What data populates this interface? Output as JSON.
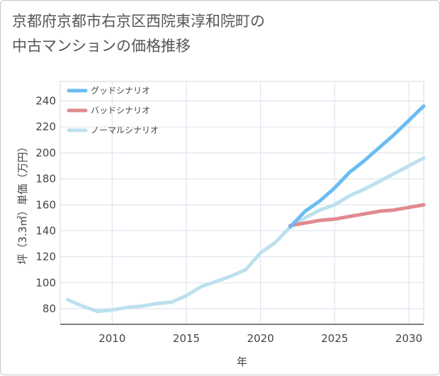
{
  "chart_data": {
    "type": "line",
    "title": "京都府京都市右京区西院東淳和院町の\n中古マンションの価格推移",
    "xlabel": "年",
    "ylabel": "坪（3.3㎡）単価（万円）",
    "xlim": [
      2006.5,
      2031
    ],
    "ylim": [
      68,
      255
    ],
    "x_ticks": [
      2010,
      2015,
      2020,
      2025,
      2030
    ],
    "y_ticks": [
      80,
      100,
      120,
      140,
      160,
      180,
      200,
      220,
      240
    ],
    "grid": true,
    "legend_position": "top-left",
    "series": [
      {
        "name": "グッドシナリオ",
        "color": "#6bbcf2",
        "x": [
          2022,
          2023,
          2024,
          2025,
          2026,
          2027,
          2028,
          2029,
          2030,
          2031
        ],
        "values": [
          143,
          155,
          163,
          173,
          185,
          194,
          204,
          214,
          225,
          236
        ]
      },
      {
        "name": "バッドシナリオ",
        "color": "#e08a8f",
        "x": [
          2022,
          2023,
          2024,
          2025,
          2026,
          2027,
          2028,
          2029,
          2030,
          2031
        ],
        "values": [
          144,
          146,
          148,
          149,
          151,
          153,
          155,
          156,
          158,
          160
        ]
      },
      {
        "name": "ノーマルシナリオ",
        "color": "#bde0ee",
        "x": [
          2007,
          2008,
          2009,
          2010,
          2011,
          2012,
          2013,
          2014,
          2015,
          2016,
          2017,
          2018,
          2019,
          2020,
          2021,
          2022,
          2023,
          2024,
          2025,
          2026,
          2027,
          2028,
          2029,
          2030,
          2031
        ],
        "values": [
          87,
          82,
          78,
          79,
          81,
          82,
          84,
          85,
          90,
          97,
          101,
          105,
          110,
          123,
          131,
          143,
          150,
          156,
          160,
          167,
          172,
          178,
          184,
          190,
          196
        ]
      }
    ]
  }
}
